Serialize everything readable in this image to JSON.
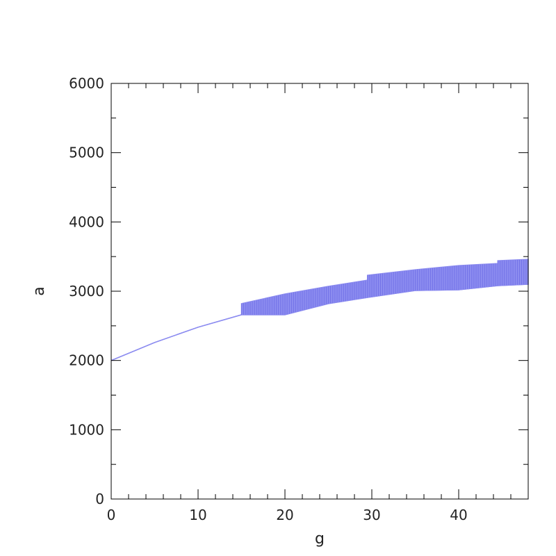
{
  "chart_data": {
    "type": "area",
    "xlabel": "g",
    "ylabel": "a",
    "xlim": [
      0,
      48
    ],
    "ylim": [
      0,
      6000
    ],
    "x_ticks": [
      0,
      10,
      20,
      30,
      40
    ],
    "y_ticks": [
      0,
      1000,
      2000,
      3000,
      4000,
      5000,
      6000
    ],
    "grid": false,
    "band_color": "#8c8cf0",
    "hatch_color": "#6f6fe6",
    "series": [
      {
        "x": [
          0,
          5,
          10,
          15,
          15,
          20,
          20,
          25,
          29.5,
          29.5,
          35,
          40,
          44.5,
          44.5,
          48
        ],
        "lower": [
          2000,
          2260,
          2480,
          2660,
          2660,
          2660,
          2660,
          2820,
          2910,
          2910,
          3010,
          3020,
          3080,
          3080,
          3100
        ],
        "upper": [
          2000,
          2260,
          2480,
          2660,
          2820,
          2960,
          2960,
          3070,
          3160,
          3230,
          3310,
          3370,
          3400,
          3440,
          3460
        ]
      }
    ]
  }
}
